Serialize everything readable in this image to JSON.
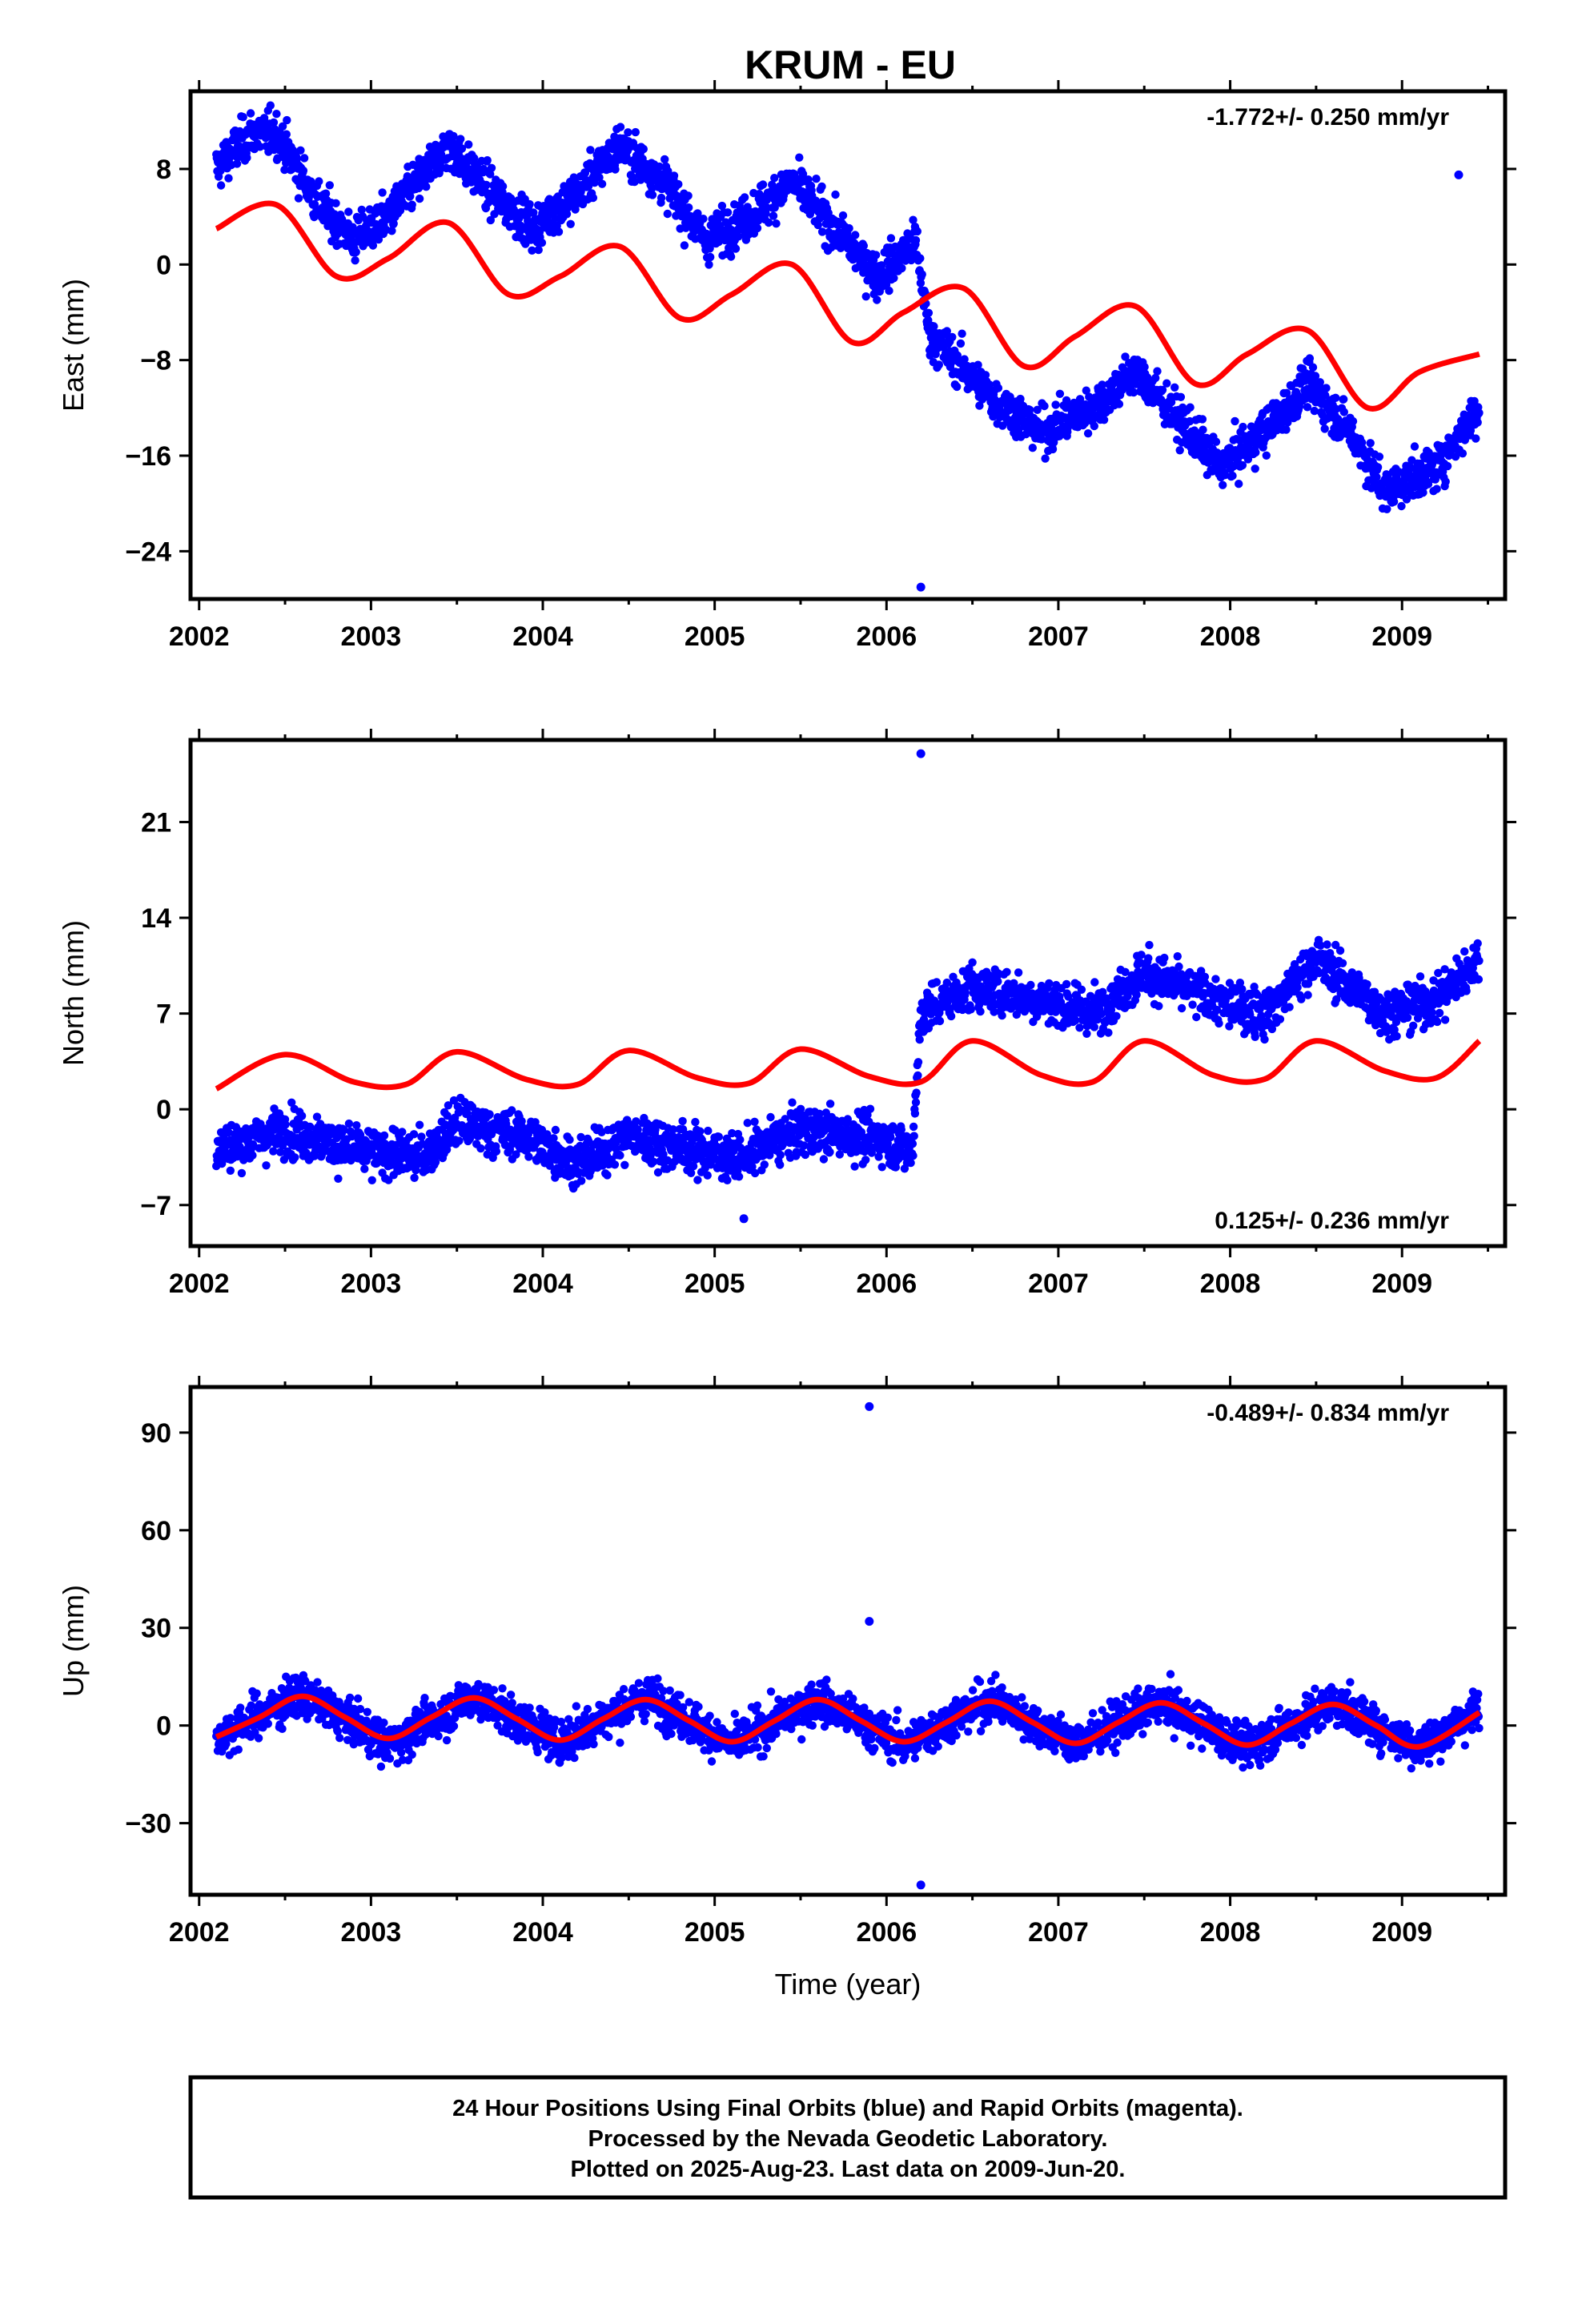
{
  "title": "KRUM - EU",
  "caption": {
    "line1": "24 Hour Positions Using Final Orbits (blue) and Rapid Orbits (magenta).",
    "line2": "Processed by the Nevada Geodetic Laboratory.",
    "line3": "Plotted on 2025-Aug-23. Last data on 2009-Jun-20."
  },
  "colors": {
    "data": "#0000ff",
    "model": "#ff0000",
    "axes": "#000000"
  },
  "chart_data": [
    {
      "type": "scatter",
      "ylabel": "East (mm)",
      "xlabel": "",
      "rate": "-1.772+/- 0.250 mm/yr",
      "rate_position": "top-right",
      "xlim": [
        2001.95,
        2009.6
      ],
      "ylim": [
        -28,
        14.5
      ],
      "xticks": [
        "2002",
        "2003",
        "2004",
        "2005",
        "2006",
        "2007",
        "2008",
        "2009"
      ],
      "yticks": [
        "8",
        "0",
        "-8",
        "-16",
        "-24"
      ],
      "series": [
        {
          "role": "observed",
          "x": [
            2002.1,
            2002.3,
            2002.45,
            2002.7,
            2002.9,
            2003.1,
            2003.45,
            2003.7,
            2003.95,
            2004.2,
            2004.45,
            2004.7,
            2004.95,
            2005.2,
            2005.45,
            2005.7,
            2005.95,
            2006.17,
            2006.25,
            2006.4,
            2006.6,
            2006.9,
            2007.2,
            2007.45,
            2007.7,
            2007.95,
            2008.2,
            2008.45,
            2008.7,
            2008.9,
            2009.2,
            2009.45,
            2009.33,
            2006.2
          ],
          "y": [
            8,
            11,
            11,
            5,
            2,
            4,
            10,
            6,
            3,
            6,
            10,
            7,
            2,
            4,
            7,
            3,
            -1,
            2,
            -6,
            -8,
            -11,
            -14,
            -12,
            -9,
            -13,
            -17,
            -14,
            -10,
            -14,
            -19,
            -17,
            -12,
            7.5,
            -27
          ]
        },
        {
          "role": "model",
          "x": [
            2002.1,
            2002.45,
            2002.8,
            2003.1,
            2003.45,
            2003.8,
            2004.1,
            2004.45,
            2004.8,
            2005.1,
            2005.45,
            2005.8,
            2006.1,
            2006.45,
            2006.8,
            2007.1,
            2007.45,
            2007.8,
            2008.1,
            2008.45,
            2008.8,
            2009.1,
            2009.45
          ],
          "y": [
            3,
            5,
            -1,
            0.5,
            3.5,
            -2.5,
            -1,
            1.5,
            -4.5,
            -2.5,
            0,
            -6.5,
            -4,
            -2,
            -8.5,
            -6,
            -3.5,
            -10,
            -7.5,
            -5.5,
            -12,
            -9,
            -7.5
          ]
        }
      ]
    },
    {
      "type": "scatter",
      "ylabel": "North (mm)",
      "xlabel": "",
      "rate": "0.125+/- 0.236 mm/yr",
      "rate_position": "bottom-right",
      "xlim": [
        2001.95,
        2009.6
      ],
      "ylim": [
        -10,
        27
      ],
      "xticks": [
        "2002",
        "2003",
        "2004",
        "2005",
        "2006",
        "2007",
        "2008",
        "2009"
      ],
      "yticks": [
        "21",
        "14",
        "7",
        "0",
        "-7"
      ],
      "series": [
        {
          "role": "observed",
          "x": [
            2002.1,
            2002.5,
            2002.9,
            2003.3,
            2003.5,
            2003.9,
            2004.2,
            2004.5,
            2004.9,
            2005.15,
            2005.5,
            2005.9,
            2006.15,
            2006.2,
            2006.5,
            2006.9,
            2007.2,
            2007.5,
            2007.9,
            2008.2,
            2008.5,
            2008.9,
            2009.2,
            2009.45,
            2006.2,
            2005.17
          ],
          "y": [
            -3,
            -1.5,
            -3,
            -3.5,
            -1,
            -2,
            -4,
            -2,
            -3,
            -3.5,
            -1.5,
            -2,
            -3,
            7,
            9,
            8,
            7,
            10,
            8,
            7,
            11,
            7,
            8,
            11,
            26,
            -8
          ]
        },
        {
          "role": "model",
          "x": [
            2002.1,
            2002.5,
            2002.9,
            2003.2,
            2003.5,
            2003.9,
            2004.2,
            2004.5,
            2004.9,
            2005.2,
            2005.5,
            2005.9,
            2006.2,
            2006.5,
            2006.9,
            2007.2,
            2007.5,
            2007.9,
            2008.2,
            2008.5,
            2008.9,
            2009.2,
            2009.45
          ],
          "y": [
            1.5,
            4,
            2,
            1.8,
            4.2,
            2.2,
            1.8,
            4.3,
            2.3,
            1.9,
            4.4,
            2.4,
            2,
            5,
            2.5,
            2,
            5,
            2.5,
            2.2,
            5,
            2.8,
            2.3,
            5
          ]
        }
      ]
    },
    {
      "type": "scatter",
      "ylabel": "Up (mm)",
      "xlabel": "Time (year)",
      "rate": "-0.489+/- 0.834 mm/yr",
      "rate_position": "top-right",
      "xlim": [
        2001.95,
        2009.6
      ],
      "ylim": [
        -52,
        104
      ],
      "xticks": [
        "2002",
        "2003",
        "2004",
        "2005",
        "2006",
        "2007",
        "2008",
        "2009"
      ],
      "yticks": [
        "90",
        "60",
        "30",
        "0",
        "-30"
      ],
      "series": [
        {
          "role": "observed",
          "x": [
            2002.1,
            2002.6,
            2003.1,
            2003.6,
            2004.1,
            2004.6,
            2005.1,
            2005.6,
            2006.1,
            2006.6,
            2007.1,
            2007.6,
            2008.1,
            2008.6,
            2009.1,
            2009.45,
            2005.9,
            2005.9,
            2006.2
          ],
          "y": [
            -4,
            10,
            -6,
            9,
            -5,
            9,
            -6,
            8,
            -6,
            8,
            -6,
            7,
            -7,
            7,
            -7,
            5,
            98,
            32,
            -49
          ]
        },
        {
          "role": "model",
          "x": [
            2002.1,
            2002.35,
            2002.6,
            2002.85,
            2003.1,
            2003.35,
            2003.6,
            2003.85,
            2004.1,
            2004.35,
            2004.6,
            2004.85,
            2005.1,
            2005.35,
            2005.6,
            2005.85,
            2006.1,
            2006.35,
            2006.6,
            2006.85,
            2007.1,
            2007.35,
            2007.6,
            2007.85,
            2008.1,
            2008.35,
            2008.6,
            2008.85,
            2009.1,
            2009.45
          ],
          "y": [
            -3.5,
            2.5,
            9,
            2.5,
            -4,
            2.5,
            8.5,
            2,
            -4.5,
            2,
            8,
            1.5,
            -5,
            1.5,
            8,
            1.5,
            -5,
            1,
            7.5,
            1,
            -5.5,
            1,
            7,
            0.5,
            -6,
            0.5,
            6.5,
            0,
            -6.5,
            4
          ]
        }
      ]
    }
  ]
}
